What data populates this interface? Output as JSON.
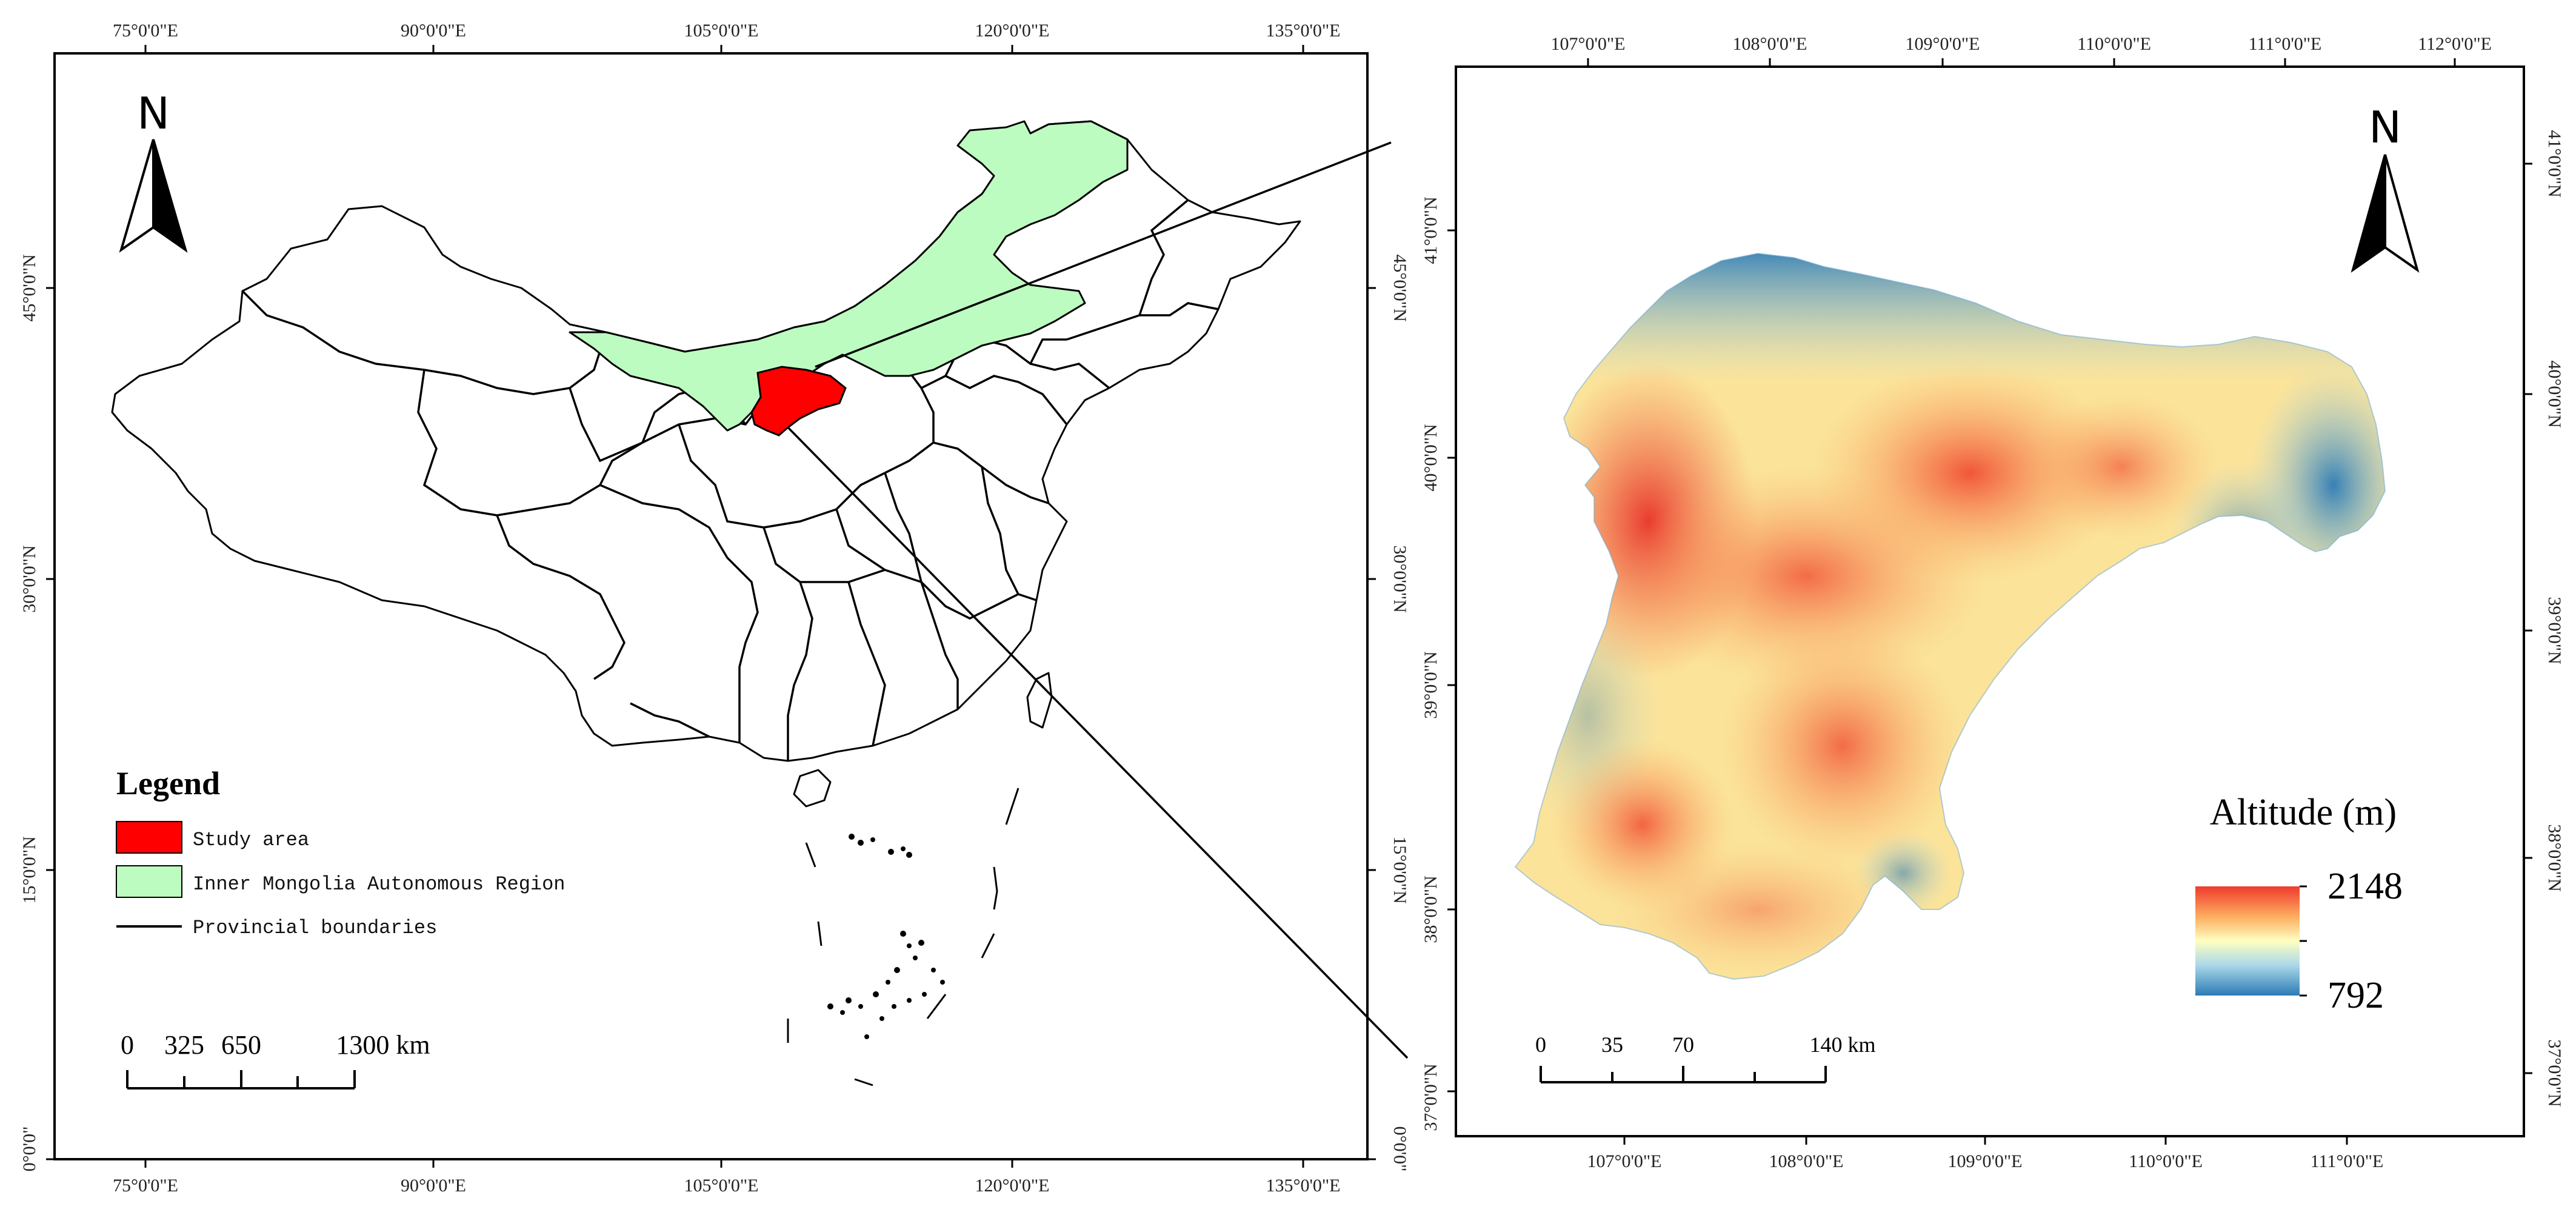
{
  "left_map": {
    "top_lon_labels": [
      "75°0'0\"E",
      "90°0'0\"E",
      "105°0'0\"E",
      "120°0'0\"E",
      "135°0'0\"E"
    ],
    "bottom_lon_labels": [
      "75°0'0\"E",
      "90°0'0\"E",
      "105°0'0\"E",
      "120°0'0\"E",
      "135°0'0\"E"
    ],
    "left_lat_labels": [
      "45°0'0\"N",
      "30°0'0\"N",
      "15°0'0\"N",
      "0°0'0\""
    ],
    "right_lat_labels": [
      "45°0'0\"N",
      "30°0'0\"N",
      "15°0'0\"N",
      "0°0'0\""
    ],
    "north": "N",
    "legend": {
      "title": "Legend",
      "items": [
        {
          "label": "Study area",
          "color": "#ff0000"
        },
        {
          "label": "Inner Mongolia Autonomous Region",
          "color": "#bdfcc0"
        },
        {
          "label": "Provincial boundaries",
          "color": "#000000"
        }
      ]
    },
    "scale": {
      "labels": [
        "0",
        "325",
        "650",
        "1300 km"
      ]
    }
  },
  "right_map": {
    "top_lon_labels": [
      "107°0'0\"E",
      "108°0'0\"E",
      "109°0'0\"E",
      "110°0'0\"E",
      "111°0'0\"E",
      "112°0'0\"E"
    ],
    "bottom_lon_labels": [
      "107°0'0\"E",
      "108°0'0\"E",
      "109°0'0\"E",
      "110°0'0\"E",
      "111°0'0\"E"
    ],
    "left_lat_labels": [
      "41°0'0\"N",
      "40°0'0\"N",
      "39°0'0\"N",
      "38°0'0\"N",
      "37°0'0\"N"
    ],
    "right_lat_labels": [
      "41°0'0\"N",
      "40°0'0\"N",
      "39°0'0\"N",
      "38°0'0\"N",
      "37°0'0\"N"
    ],
    "north": "N",
    "altitude": {
      "title": "Altitude (m)",
      "max": "2148",
      "min": "792",
      "colors": [
        "#ef3b2c",
        "#fdae61",
        "#ffffbf",
        "#abd9e9",
        "#2c7bb6"
      ]
    },
    "scale": {
      "labels": [
        "0",
        "35",
        "70",
        "140 km"
      ]
    }
  }
}
